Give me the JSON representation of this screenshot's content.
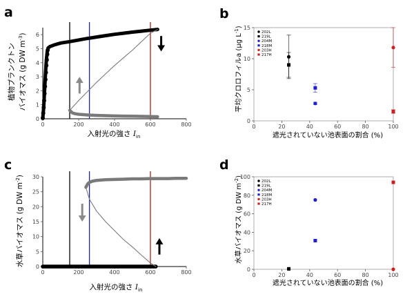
{
  "colors": {
    "curve_black": "#000000",
    "curve_grey": "#808080",
    "vline_black": "#000000",
    "vline_blue": "#1f1fb0",
    "vline_red": "#b01f1f",
    "arrow_grey": "#8a8a8a",
    "arrow_black": "#000000"
  },
  "panels": {
    "a": {
      "letter": "a",
      "ylabel_line1": "植物プランクトン",
      "ylabel_line2": "バイオマス (g DW m",
      "ylabel_sup": "-3",
      "ylabel_end": ")",
      "xlabel": "入射光の強さ ",
      "xlabel_sym": "I",
      "xlabel_sub": "in"
    },
    "b": {
      "letter": "b",
      "ylabel": "平均クロロフィルa (μg L",
      "ylabel_sup": "-1",
      "ylabel_end": ")",
      "xlabel": "遮光されていない池表面の割合 (%)"
    },
    "c": {
      "letter": "c",
      "ylabel": "水草バイオマス (g DW m",
      "ylabel_sup": "-2",
      "ylabel_end": ")",
      "xlabel": "入射光の強さ ",
      "xlabel_sym": "I",
      "xlabel_sub": "in"
    },
    "d": {
      "letter": "d",
      "ylabel": "水草バイオマス (g DW m",
      "ylabel_sup": "-2",
      "ylabel_end": ")",
      "xlabel": "遮光されていない池表面の割合 (%)"
    }
  },
  "legend": [
    {
      "label": "202L",
      "color": "#000000",
      "marker": "circle"
    },
    {
      "label": "219L",
      "color": "#000000",
      "marker": "square"
    },
    {
      "label": "204M",
      "color": "#1f1fd0",
      "marker": "circle"
    },
    {
      "label": "218M",
      "color": "#1f1fd0",
      "marker": "square"
    },
    {
      "label": "203H",
      "color": "#cc1f1f",
      "marker": "circle"
    },
    {
      "label": "217H",
      "color": "#cc1f1f",
      "marker": "square"
    }
  ],
  "chart_data": [
    {
      "panel": "a",
      "type": "line",
      "xlim": [
        0,
        800
      ],
      "ylim": [
        0,
        6.5
      ],
      "xticks": [
        0,
        200,
        400,
        600,
        800
      ],
      "yticks": [
        0,
        1,
        2,
        3,
        4,
        5,
        6
      ],
      "vlines": [
        {
          "x": 150,
          "color": "#000000"
        },
        {
          "x": 260,
          "color": "#1f1fb0"
        },
        {
          "x": 600,
          "color": "#b01f1f"
        }
      ],
      "series": [
        {
          "style": "thick-dotted-black",
          "x": [
            0,
            5,
            10,
            15,
            20,
            25,
            30,
            40,
            60,
            100,
            150,
            200,
            250,
            300,
            350,
            400,
            450,
            500,
            550,
            600,
            640
          ],
          "y": [
            0.05,
            0.8,
            2.0,
            3.2,
            4.2,
            4.8,
            5.05,
            5.15,
            5.25,
            5.4,
            5.5,
            5.62,
            5.73,
            5.83,
            5.93,
            6.02,
            6.1,
            6.18,
            6.25,
            6.32,
            6.37
          ]
        },
        {
          "style": "thin-grey",
          "x": [
            150,
            200,
            250,
            300,
            350,
            400,
            450,
            500,
            550,
            600,
            640
          ],
          "y": [
            0.6,
            1.3,
            1.95,
            2.6,
            3.2,
            3.8,
            4.35,
            4.9,
            5.5,
            6.1,
            6.37
          ]
        },
        {
          "style": "thick-grey",
          "x": [
            150,
            165,
            180,
            200,
            250,
            300,
            350,
            400,
            450,
            500,
            550,
            600,
            640
          ],
          "y": [
            0.6,
            0.42,
            0.36,
            0.32,
            0.27,
            0.24,
            0.22,
            0.2,
            0.19,
            0.18,
            0.17,
            0.16,
            0.15
          ]
        }
      ],
      "arrows": [
        {
          "x": 205,
          "y_from": 1.8,
          "y_to": 3.0,
          "color": "#8a8a8a"
        },
        {
          "x": 660,
          "y_from": 5.9,
          "y_to": 4.8,
          "color": "#000000"
        }
      ]
    },
    {
      "panel": "b",
      "type": "scatter",
      "xlim": [
        0,
        100
      ],
      "ylim": [
        0,
        15
      ],
      "xticks": [
        0,
        20,
        40,
        60,
        80,
        100
      ],
      "yticks": [
        0,
        5,
        10,
        15
      ],
      "series": [
        {
          "name": "202L",
          "marker": "circle",
          "color": "#000000",
          "x": [
            25
          ],
          "y": [
            10.3
          ],
          "err": [
            3.5
          ]
        },
        {
          "name": "219L",
          "marker": "square",
          "color": "#000000",
          "x": [
            25
          ],
          "y": [
            9.0
          ],
          "err": [
            2.0
          ]
        },
        {
          "name": "204M",
          "marker": "circle",
          "color": "#1f1fd0",
          "x": [
            44
          ],
          "y": [
            2.8
          ],
          "err": [
            0.2
          ]
        },
        {
          "name": "218M",
          "marker": "square",
          "color": "#1f1fd0",
          "x": [
            44
          ],
          "y": [
            5.3
          ],
          "err": [
            0.7
          ]
        },
        {
          "name": "203H",
          "marker": "circle",
          "color": "#cc1f1f",
          "x": [
            100
          ],
          "y": [
            11.8
          ],
          "err": [
            3.2
          ]
        },
        {
          "name": "217H",
          "marker": "square",
          "color": "#cc1f1f",
          "x": [
            100
          ],
          "y": [
            1.5
          ],
          "err": [
            0.3
          ]
        }
      ]
    },
    {
      "panel": "c",
      "type": "line",
      "xlim": [
        0,
        800
      ],
      "ylim": [
        0,
        30
      ],
      "xticks": [
        0,
        200,
        400,
        600,
        800
      ],
      "yticks": [
        0,
        5,
        10,
        15,
        20,
        25,
        30
      ],
      "vlines": [
        {
          "x": 150,
          "color": "#000000"
        },
        {
          "x": 260,
          "color": "#1f1fb0"
        },
        {
          "x": 600,
          "color": "#b01f1f"
        }
      ],
      "series": [
        {
          "style": "thick-black",
          "x": [
            0,
            100,
            200,
            300,
            400,
            500,
            600,
            630
          ],
          "y": [
            0,
            0,
            0,
            0,
            0,
            0,
            0,
            0
          ]
        },
        {
          "style": "thick-grey",
          "x": [
            240,
            250,
            260,
            275,
            300,
            350,
            400,
            450,
            500,
            550,
            600,
            650,
            700,
            750,
            800
          ],
          "y": [
            26.5,
            27.6,
            28.1,
            28.5,
            28.8,
            29.0,
            29.1,
            29.2,
            29.3,
            29.3,
            29.4,
            29.4,
            29.4,
            29.5,
            29.5
          ]
        },
        {
          "style": "thin-grey",
          "x": [
            240,
            260,
            300,
            350,
            400,
            450,
            500,
            550,
            600,
            630
          ],
          "y": [
            26.5,
            22.5,
            18.5,
            15.0,
            12.0,
            9.0,
            6.5,
            3.8,
            1.2,
            0
          ]
        }
      ],
      "arrows": [
        {
          "x": 220,
          "y_from": 21,
          "y_to": 15,
          "color": "#8a8a8a"
        },
        {
          "x": 650,
          "y_from": 4,
          "y_to": 9.5,
          "color": "#000000"
        }
      ]
    },
    {
      "panel": "d",
      "type": "scatter",
      "xlim": [
        0,
        100
      ],
      "ylim": [
        0,
        100
      ],
      "xticks": [
        0,
        20,
        40,
        60,
        80,
        100
      ],
      "yticks": [
        0,
        20,
        40,
        60,
        80,
        100
      ],
      "series": [
        {
          "name": "202L",
          "marker": "circle",
          "color": "#000000",
          "x": [
            25
          ],
          "y": [
            0.5
          ],
          "err": [
            0
          ]
        },
        {
          "name": "219L",
          "marker": "square",
          "color": "#000000",
          "x": [
            25
          ],
          "y": [
            0.5
          ],
          "err": [
            0
          ]
        },
        {
          "name": "204M",
          "marker": "circle",
          "color": "#1f1fd0",
          "x": [
            44
          ],
          "y": [
            75
          ],
          "err": [
            0
          ]
        },
        {
          "name": "218M",
          "marker": "square",
          "color": "#1f1fd0",
          "x": [
            44
          ],
          "y": [
            31
          ],
          "err": [
            0
          ]
        },
        {
          "name": "203H",
          "marker": "circle",
          "color": "#cc1f1f",
          "x": [
            100
          ],
          "y": [
            0
          ],
          "err": [
            0
          ]
        },
        {
          "name": "217H",
          "marker": "square",
          "color": "#cc1f1f",
          "x": [
            100
          ],
          "y": [
            94
          ],
          "err": [
            0
          ]
        }
      ]
    }
  ]
}
